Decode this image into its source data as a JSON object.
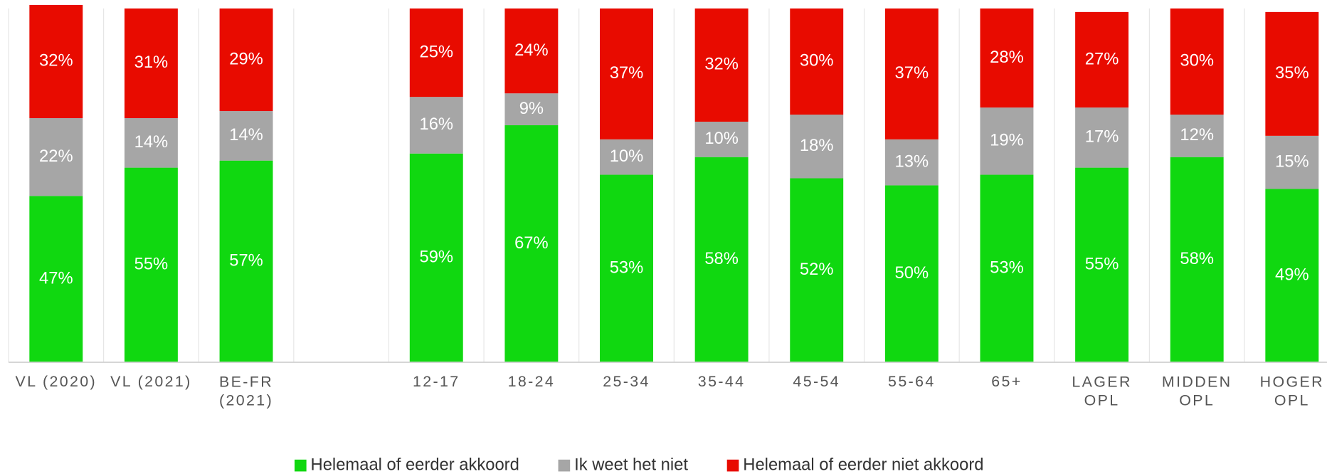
{
  "chart_data": {
    "type": "stacked_bar",
    "categories": [
      "VL (2020)",
      "VL (2021)",
      "BE-FR\n(2021)",
      null,
      "12-17",
      "18-24",
      "25-34",
      "35-44",
      "45-54",
      "55-64",
      "65+",
      "LAGER\nOPL",
      "MIDDEN\nOPL",
      "HOGER\nOPL"
    ],
    "ylim": [
      0,
      100
    ],
    "legend": "bottom",
    "series": [
      {
        "name": "Helemaal of eerder akkoord",
        "color": "#10d810",
        "values": [
          47,
          55,
          57,
          null,
          59,
          67,
          53,
          58,
          52,
          50,
          53,
          55,
          58,
          49
        ],
        "value_labels": [
          "47%",
          "55%",
          "57%",
          null,
          "59%",
          "67%",
          "53%",
          "58%",
          "52%",
          "50%",
          "53%",
          "55%",
          "58%",
          "49%"
        ]
      },
      {
        "name": "Ik weet het niet",
        "color": "#a6a6a6",
        "values": [
          22,
          14,
          14,
          null,
          16,
          9,
          10,
          10,
          18,
          13,
          19,
          17,
          12,
          15
        ],
        "value_labels": [
          "22%",
          "14%",
          "14%",
          null,
          "16%",
          "9%",
          "10%",
          "10%",
          "18%",
          "13%",
          "19%",
          "17%",
          "12%",
          "15%"
        ]
      },
      {
        "name": "Helemaal of eerder niet akkoord",
        "color": "#e80b00",
        "values": [
          32,
          31,
          29,
          null,
          25,
          24,
          37,
          32,
          30,
          37,
          28,
          27,
          30,
          35
        ],
        "value_labels": [
          "32%",
          "31%",
          "29%",
          null,
          "25%",
          "24%",
          "37%",
          "32%",
          "30%",
          "37%",
          "28%",
          "27%",
          "30%",
          "35%"
        ]
      }
    ]
  }
}
